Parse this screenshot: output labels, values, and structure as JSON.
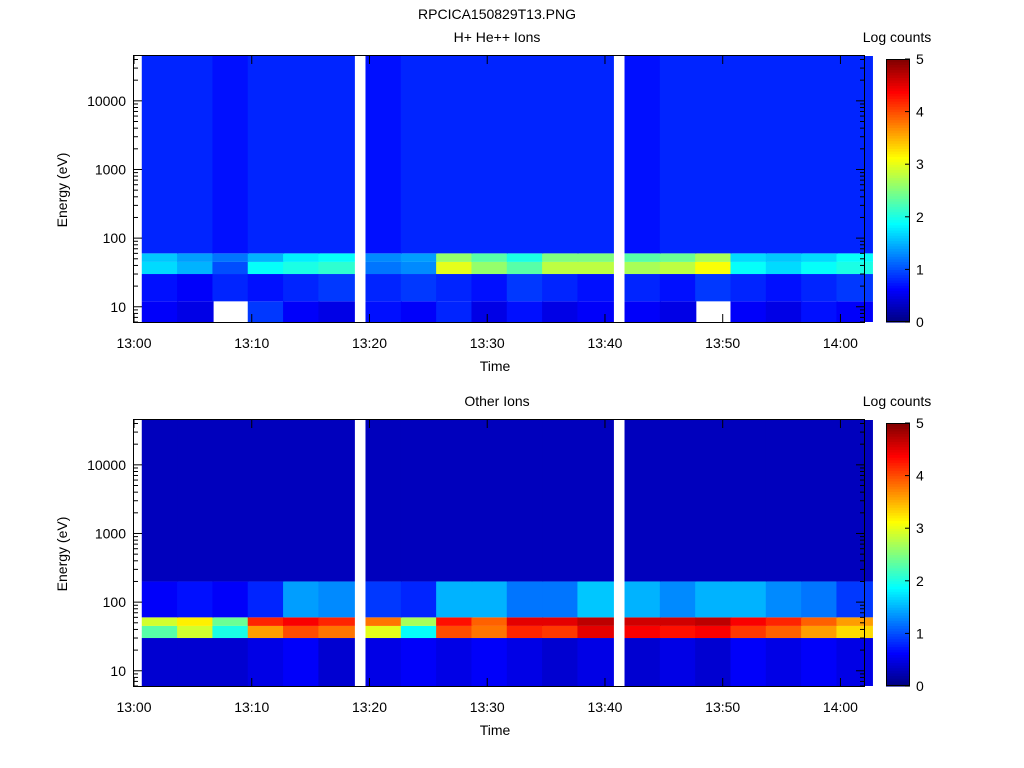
{
  "figure_title": "RPCICA150829T13.PNG",
  "panels": [
    {
      "title": "H+ He++ Ions",
      "xlabel": "Time",
      "ylabel": "Energy (eV)",
      "colorbar_label": "Log counts"
    },
    {
      "title": "Other Ions",
      "xlabel": "Time",
      "ylabel": "Energy (eV)",
      "colorbar_label": "Log counts"
    }
  ],
  "chart_data": [
    {
      "type": "heatmap",
      "title": "H+ He++ Ions",
      "xlabel": "Time",
      "ylabel": "Energy (eV)",
      "x_range": [
        "13:00",
        "14:02"
      ],
      "xticks": [
        "13:00",
        "13:10",
        "13:20",
        "13:30",
        "13:40",
        "13:50",
        "14:00"
      ],
      "y_scale": "log",
      "ylim": [
        6,
        45000
      ],
      "yticks": [
        "10",
        "100",
        "1000",
        "10000"
      ],
      "colorbar": {
        "label": "Log counts",
        "range": [
          0,
          5
        ],
        "ticks": [
          "0",
          "1",
          "2",
          "3",
          "4",
          "5"
        ],
        "colormap": "jet"
      },
      "time_bins": [
        "13:01",
        "13:04",
        "13:07",
        "13:10",
        "13:13",
        "13:16",
        "13:20",
        "13:23",
        "13:26",
        "13:29",
        "13:32",
        "13:35",
        "13:38",
        "13:42",
        "13:45",
        "13:48",
        "13:51",
        "13:54",
        "13:57",
        "14:00"
      ],
      "energy_band_log_counts": [
        {
          "energy_range_eV": [
            6,
            12
          ],
          "log_counts": [
            0.6,
            0.5,
            null,
            0.9,
            0.6,
            0.5,
            0.7,
            0.6,
            0.8,
            0.5,
            0.7,
            0.5,
            0.6,
            0.6,
            0.5,
            null,
            0.6,
            0.5,
            0.7,
            0.6
          ]
        },
        {
          "energy_range_eV": [
            12,
            30
          ],
          "log_counts": [
            0.7,
            0.6,
            0.8,
            0.7,
            0.8,
            0.9,
            0.8,
            0.9,
            0.8,
            0.7,
            0.9,
            0.8,
            0.7,
            0.8,
            0.7,
            0.9,
            0.8,
            0.7,
            0.8,
            0.9
          ]
        },
        {
          "energy_range_eV": [
            30,
            45
          ],
          "log_counts": [
            1.7,
            1.5,
            1.0,
            1.9,
            2.0,
            2.1,
            1.2,
            1.3,
            3.0,
            2.6,
            2.3,
            2.8,
            2.8,
            2.7,
            2.8,
            3.1,
            1.9,
            1.7,
            1.9,
            2.0
          ]
        },
        {
          "energy_range_eV": [
            45,
            60
          ],
          "log_counts": [
            1.6,
            1.4,
            1.2,
            1.5,
            1.8,
            1.9,
            1.3,
            1.4,
            2.6,
            2.3,
            2.0,
            2.5,
            2.5,
            2.3,
            2.4,
            2.7,
            1.7,
            1.6,
            1.7,
            1.9
          ]
        },
        {
          "energy_range_eV": [
            60,
            45000
          ],
          "log_counts": [
            0.8,
            0.8,
            0.7,
            0.8,
            0.8,
            0.8,
            0.7,
            0.8,
            0.8,
            0.8,
            0.8,
            0.8,
            0.8,
            0.7,
            0.8,
            0.8,
            0.8,
            0.8,
            0.8,
            0.8
          ]
        }
      ]
    },
    {
      "type": "heatmap",
      "title": "Other Ions",
      "xlabel": "Time",
      "ylabel": "Energy (eV)",
      "x_range": [
        "13:00",
        "14:02"
      ],
      "xticks": [
        "13:00",
        "13:10",
        "13:20",
        "13:30",
        "13:40",
        "13:50",
        "14:00"
      ],
      "y_scale": "log",
      "ylim": [
        6,
        45000
      ],
      "yticks": [
        "10",
        "100",
        "1000",
        "10000"
      ],
      "colorbar": {
        "label": "Log counts",
        "range": [
          0,
          5
        ],
        "ticks": [
          "0",
          "1",
          "2",
          "3",
          "4",
          "5"
        ],
        "colormap": "jet"
      },
      "time_bins": [
        "13:01",
        "13:04",
        "13:07",
        "13:10",
        "13:13",
        "13:16",
        "13:20",
        "13:23",
        "13:26",
        "13:29",
        "13:32",
        "13:35",
        "13:38",
        "13:42",
        "13:45",
        "13:48",
        "13:51",
        "13:54",
        "13:57",
        "14:00"
      ],
      "energy_band_log_counts": [
        {
          "energy_range_eV": [
            6,
            30
          ],
          "log_counts": [
            0.4,
            0.4,
            0.4,
            0.5,
            0.6,
            0.4,
            0.5,
            0.6,
            0.5,
            0.6,
            0.5,
            0.4,
            0.5,
            0.4,
            0.5,
            0.4,
            0.6,
            0.5,
            0.6,
            0.5
          ]
        },
        {
          "energy_range_eV": [
            30,
            45
          ],
          "log_counts": [
            2.3,
            2.9,
            2.0,
            3.6,
            4.0,
            3.8,
            3.0,
            1.9,
            4.0,
            3.8,
            4.2,
            4.1,
            4.5,
            4.4,
            4.3,
            4.4,
            4.1,
            3.9,
            3.6,
            3.3
          ]
        },
        {
          "energy_range_eV": [
            45,
            60
          ],
          "log_counts": [
            2.9,
            3.2,
            2.4,
            4.2,
            4.4,
            4.2,
            3.8,
            2.7,
            4.3,
            3.9,
            4.5,
            4.5,
            4.7,
            4.6,
            4.6,
            4.7,
            4.4,
            4.2,
            3.9,
            3.6
          ]
        },
        {
          "energy_range_eV": [
            60,
            200
          ],
          "log_counts": [
            0.6,
            0.7,
            0.6,
            0.8,
            1.4,
            1.3,
            0.9,
            0.8,
            1.5,
            1.5,
            1.2,
            1.2,
            1.6,
            1.5,
            1.3,
            1.5,
            1.5,
            1.3,
            1.2,
            0.9
          ]
        },
        {
          "energy_range_eV": [
            200,
            45000
          ],
          "log_counts": [
            0.3,
            0.3,
            0.3,
            0.3,
            0.3,
            0.3,
            0.3,
            0.3,
            0.3,
            0.3,
            0.3,
            0.3,
            0.3,
            0.3,
            0.3,
            0.3,
            0.3,
            0.3,
            0.3,
            0.3
          ]
        }
      ]
    }
  ]
}
